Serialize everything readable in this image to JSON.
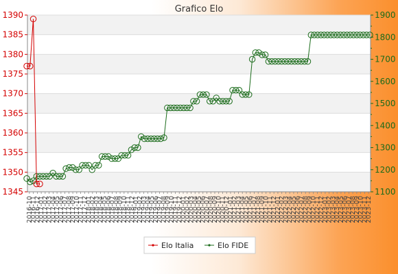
{
  "chart_data": {
    "type": "line",
    "title": "Grafico Elo",
    "y_left": {
      "ylim": [
        1345,
        1390
      ],
      "ticks": [
        1345,
        1350,
        1355,
        1360,
        1365,
        1370,
        1375,
        1380,
        1385,
        1390
      ],
      "color": "#d40000"
    },
    "y_right": {
      "ylim": [
        1100,
        1900
      ],
      "ticks": [
        1100,
        1200,
        1300,
        1400,
        1500,
        1600,
        1700,
        1800,
        1900
      ],
      "color": "#1a6b1a"
    },
    "grid": true,
    "legend": "bottom-center",
    "x_tick_labels": [
      "2016-10",
      "2016-11",
      "2016-12",
      "2017-01",
      "2017-02",
      "2017-03",
      "2017-04",
      "2017-05",
      "2017-06",
      "2017-07",
      "2017-08",
      "2017-09",
      "2017-10",
      "2017-11",
      "2017-12",
      "2018-01",
      "2018-02",
      "2018-03",
      "2018-04",
      "2018-05",
      "2018-06",
      "2018-07",
      "2018-08",
      "2018-09",
      "2018-10",
      "2018-11",
      "2018-12",
      "2019-01",
      "2019-02",
      "2019-03",
      "2019-04",
      "2019-05",
      "2019-06",
      "2019-07",
      "2019-08",
      "2019-09",
      "2019-10",
      "2019-11",
      "2019-12",
      "2020-01",
      "2020-02",
      "2020-03",
      "2020-04",
      "2020-05",
      "2020-06",
      "2020-07",
      "2020-08",
      "2020-09",
      "2020-10",
      "2020-11",
      "2020-12",
      "2021-01",
      "2021-02",
      "2021-03",
      "2021-04",
      "2021-05",
      "2021-06",
      "2021-07",
      "2021-08",
      "2021-09",
      "2021-10",
      "2021-11",
      "2021-12",
      "2022-01",
      "2022-02",
      "2022-03",
      "2022-04",
      "2022-05",
      "2022-06",
      "2022-07",
      "2022-08",
      "2022-09",
      "2022-10",
      "2022-11",
      "2022-12",
      "2023-01",
      "2023-02",
      "2023-03",
      "2023-04",
      "2023-05",
      "2023-06",
      "2023-07",
      "2023-08",
      "2023-09",
      "2023-10",
      "2023-11",
      "2023-12"
    ],
    "series": [
      {
        "name": "Elo Italia",
        "axis": "left",
        "color": "#d40000",
        "values": [
          1377,
          1377,
          1389,
          1347,
          1347
        ]
      },
      {
        "name": "Elo FIDE",
        "axis": "right",
        "color": "#1a6b1a",
        "values": [
          1160,
          1145,
          1150,
          1170,
          1170,
          1170,
          1170,
          1170,
          1185,
          1170,
          1170,
          1170,
          1205,
          1210,
          1210,
          1200,
          1200,
          1220,
          1220,
          1220,
          1200,
          1220,
          1220,
          1260,
          1260,
          1260,
          1250,
          1250,
          1250,
          1265,
          1265,
          1265,
          1290,
          1300,
          1300,
          1350,
          1340,
          1340,
          1340,
          1340,
          1340,
          1340,
          1345,
          1480,
          1480,
          1480,
          1480,
          1480,
          1480,
          1480,
          1480,
          1510,
          1510,
          1540,
          1540,
          1540,
          1510,
          1510,
          1525,
          1510,
          1510,
          1510,
          1510,
          1560,
          1560,
          1560,
          1540,
          1540,
          1540,
          1700,
          1730,
          1730,
          1720,
          1720,
          1690,
          1690,
          1690,
          1690,
          1690,
          1690,
          1690,
          1690,
          1690,
          1690,
          1690,
          1690,
          1690,
          1810,
          1810,
          1810,
          1810,
          1810,
          1810,
          1810,
          1810,
          1810,
          1810,
          1810,
          1810,
          1810,
          1810,
          1810,
          1810,
          1810,
          1810,
          1810
        ]
      }
    ]
  }
}
